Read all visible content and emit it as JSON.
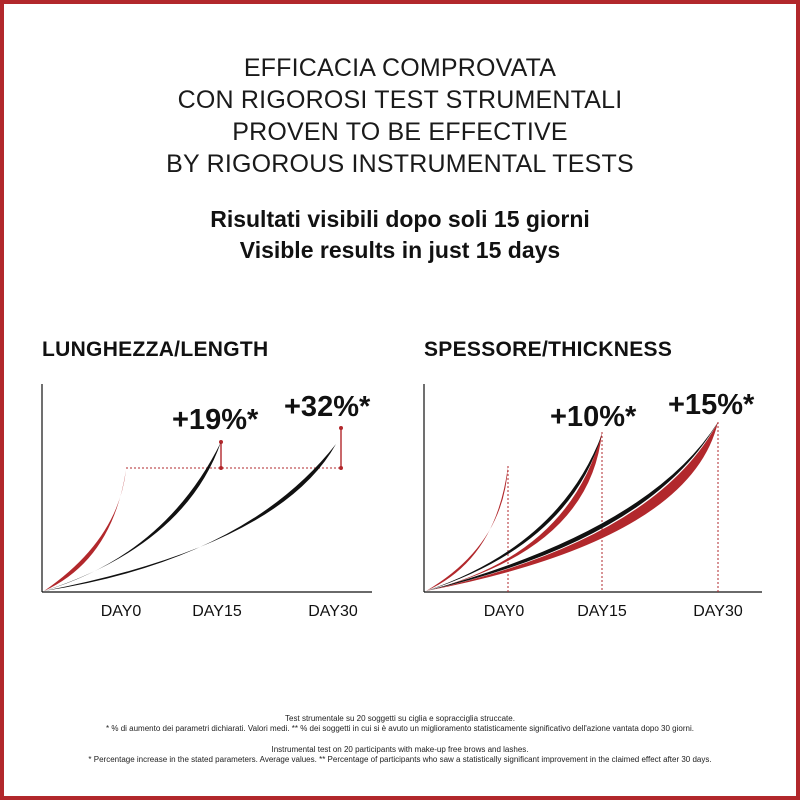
{
  "heading": {
    "lines": [
      "EFFICACIA COMPROVATA",
      "CON RIGOROSI TEST STRUMENTALI",
      "PROVEN TO BE EFFECTIVE",
      "BY RIGOROUS INSTRUMENTAL TESTS"
    ]
  },
  "subheading": {
    "lines": [
      "Risultati visibili dopo soli 15 giorni",
      "Visible results in just 15 days"
    ]
  },
  "colors": {
    "accent": "#b2282c",
    "dark": "#111111"
  },
  "chart_data": [
    {
      "type": "line",
      "title": "LUNGHEZZA/LENGTH",
      "x_ticks": [
        "DAY0",
        "DAY15",
        "DAY30"
      ],
      "baseline_level": 100,
      "series": [
        {
          "label_at": "DAY15",
          "value": 119,
          "annotation": "+19%*"
        },
        {
          "label_at": "DAY30",
          "value": 132,
          "annotation": "+32%*"
        }
      ],
      "grid": false
    },
    {
      "type": "line",
      "title": "SPESSORE/THICKNESS",
      "x_ticks": [
        "DAY0",
        "DAY15",
        "DAY30"
      ],
      "baseline_level": 100,
      "series": [
        {
          "label_at": "DAY15",
          "value": 110,
          "annotation": "+10%*"
        },
        {
          "label_at": "DAY30",
          "value": 115,
          "annotation": "+15%*"
        }
      ],
      "grid": false
    }
  ],
  "footnotes": {
    "italian": [
      "Test strumentale su 20 soggetti su ciglia e sopracciglia struccate.",
      "* % di aumento dei parametri dichiarati. Valori medi. ** % dei soggetti in cui si è avuto un miglioramento statisticamente significativo dell'azione vantata dopo 30 giorni."
    ],
    "english": [
      "Instrumental test on 20 participants with make-up free brows and lashes.",
      "* Percentage increase in the stated parameters. Average values. ** Percentage of participants who saw a statistically significant improvement in the claimed effect after 30 days."
    ]
  }
}
